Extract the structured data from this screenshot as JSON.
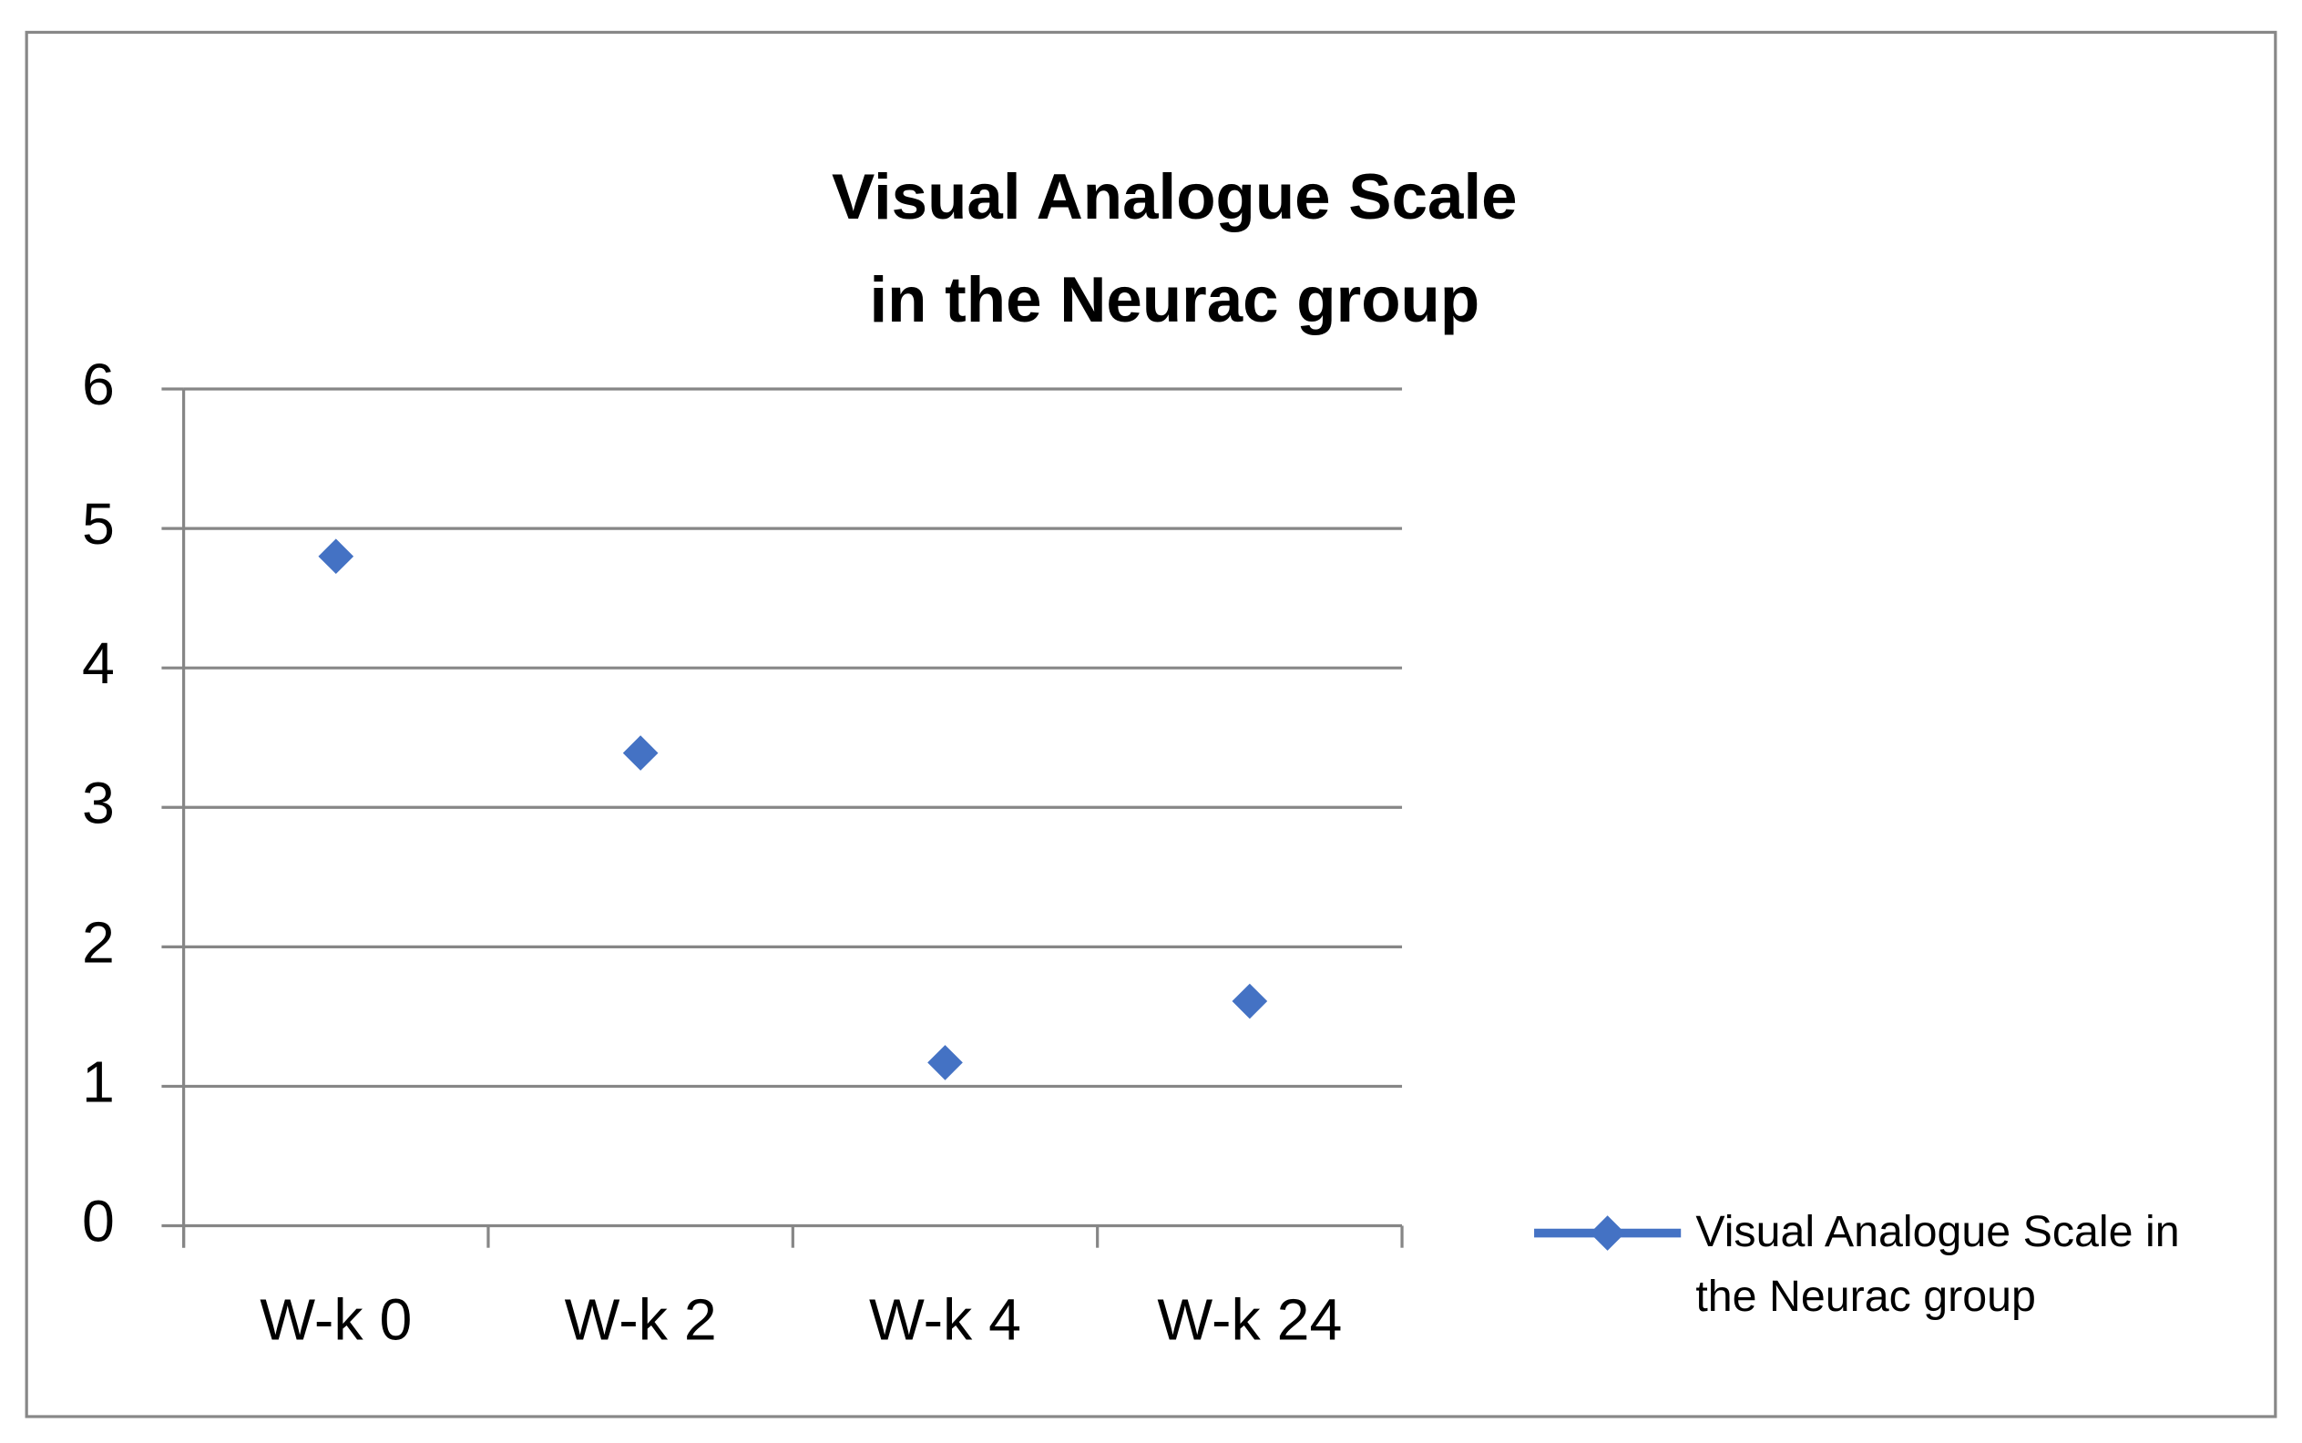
{
  "chart_data": {
    "type": "line",
    "title": "Visual Analogue Scale\nin the Neurac group",
    "categories": [
      "W-k 0",
      "W-k 2",
      "W-k 4",
      "W-k 24"
    ],
    "series": [
      {
        "name": "Visual Analogue Scale in\nthe Neurac group",
        "color": "#4472c4",
        "values": [
          4.8,
          3.39,
          1.17,
          1.61
        ]
      }
    ],
    "ylim": [
      0,
      6
    ],
    "yticks": [
      0,
      1,
      2,
      3,
      4,
      5,
      6
    ],
    "grid": true,
    "legend": "right"
  }
}
